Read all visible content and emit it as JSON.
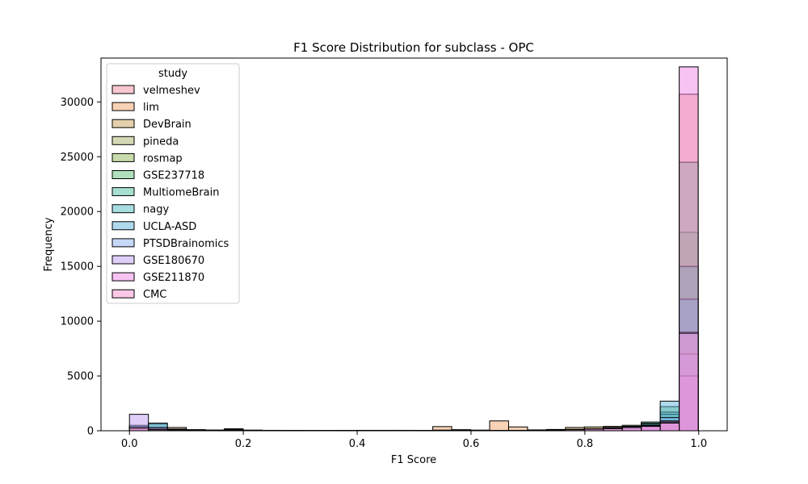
{
  "chart_data": {
    "type": "histogram",
    "title": "F1 Score Distribution for subclass - OPC",
    "xlabel": "F1 Score",
    "ylabel": "Frequency",
    "xlim": [
      -0.05,
      1.05
    ],
    "ylim": [
      0,
      34000
    ],
    "xticks": [
      0.0,
      0.2,
      0.4,
      0.6,
      0.8,
      1.0
    ],
    "xtick_labels": [
      "0.0",
      "0.2",
      "0.4",
      "0.6",
      "0.8",
      "1.0"
    ],
    "yticks": [
      0,
      5000,
      10000,
      15000,
      20000,
      25000,
      30000
    ],
    "ytick_labels": [
      "0",
      "5000",
      "10000",
      "15000",
      "20000",
      "25000",
      "30000"
    ],
    "bin_start": 0.0,
    "bin_width": 0.0333,
    "bin_count": 30,
    "legend": {
      "title": "study",
      "location": "upper left"
    },
    "grid": false,
    "series": [
      {
        "name": "velmeshev",
        "color": "#f48fa2",
        "values": [
          120,
          20,
          30,
          10,
          0,
          0,
          0,
          0,
          0,
          0,
          0,
          0,
          0,
          0,
          0,
          0,
          0,
          0,
          0,
          0,
          0,
          0,
          0,
          0,
          0,
          20,
          40,
          80,
          200,
          5800
        ]
      },
      {
        "name": "lim",
        "color": "#f2a56b",
        "values": [
          200,
          60,
          80,
          30,
          0,
          0,
          0,
          0,
          0,
          0,
          0,
          0,
          0,
          0,
          0,
          0,
          380,
          100,
          60,
          900,
          350,
          80,
          120,
          150,
          200,
          250,
          300,
          400,
          800,
          30700
        ]
      },
      {
        "name": "DevBrain",
        "color": "#c9a25a",
        "values": [
          300,
          150,
          300,
          100,
          50,
          120,
          60,
          40,
          20,
          10,
          20,
          30,
          40,
          40,
          40,
          30,
          60,
          40,
          30,
          30,
          40,
          60,
          80,
          300,
          350,
          400,
          400,
          500,
          600,
          14900
        ]
      },
      {
        "name": "pineda",
        "color": "#adb06a",
        "values": [
          100,
          50,
          60,
          30,
          20,
          20,
          10,
          0,
          0,
          0,
          0,
          0,
          0,
          0,
          0,
          0,
          20,
          20,
          20,
          20,
          20,
          30,
          40,
          60,
          80,
          100,
          200,
          300,
          500,
          8800
        ]
      },
      {
        "name": "rosmap",
        "color": "#8fb85a",
        "values": [
          300,
          100,
          120,
          60,
          30,
          30,
          20,
          10,
          10,
          10,
          10,
          10,
          10,
          10,
          10,
          10,
          30,
          30,
          30,
          30,
          30,
          40,
          60,
          100,
          150,
          200,
          300,
          400,
          700,
          18100
        ]
      },
      {
        "name": "GSE237718",
        "color": "#5fbf7a",
        "values": [
          200,
          80,
          60,
          40,
          20,
          20,
          20,
          10,
          10,
          10,
          10,
          10,
          10,
          10,
          10,
          10,
          20,
          20,
          20,
          20,
          20,
          30,
          40,
          80,
          150,
          300,
          500,
          700,
          2200,
          24500
        ]
      },
      {
        "name": "MultiomeBrain",
        "color": "#4dbfa0",
        "values": [
          400,
          250,
          100,
          50,
          30,
          30,
          20,
          10,
          10,
          10,
          10,
          10,
          10,
          10,
          10,
          10,
          20,
          20,
          20,
          20,
          30,
          40,
          60,
          100,
          150,
          250,
          400,
          800,
          1700,
          15000
        ]
      },
      {
        "name": "nagy",
        "color": "#4fbcbf",
        "values": [
          400,
          600,
          150,
          80,
          60,
          180,
          40,
          30,
          20,
          10,
          10,
          10,
          10,
          10,
          10,
          10,
          20,
          20,
          20,
          20,
          30,
          40,
          60,
          100,
          150,
          250,
          350,
          600,
          1500,
          12000
        ]
      },
      {
        "name": "UCLA-ASD",
        "color": "#5fb3dc",
        "values": [
          500,
          700,
          150,
          80,
          60,
          100,
          40,
          30,
          20,
          10,
          10,
          10,
          10,
          10,
          10,
          10,
          20,
          20,
          20,
          20,
          30,
          40,
          60,
          100,
          150,
          250,
          400,
          650,
          2700,
          9000
        ]
      },
      {
        "name": "PTSDBrainomics",
        "color": "#8db2f0",
        "values": [
          300,
          200,
          100,
          50,
          30,
          30,
          20,
          10,
          10,
          10,
          10,
          10,
          10,
          10,
          10,
          10,
          20,
          20,
          20,
          20,
          30,
          40,
          60,
          100,
          150,
          200,
          300,
          500,
          1200,
          7000
        ]
      },
      {
        "name": "GSE180670",
        "color": "#c0a0f2",
        "values": [
          1500,
          300,
          100,
          50,
          30,
          30,
          20,
          10,
          10,
          10,
          10,
          10,
          10,
          10,
          10,
          10,
          20,
          20,
          20,
          20,
          30,
          40,
          60,
          100,
          150,
          200,
          300,
          450,
          900,
          5000
        ]
      },
      {
        "name": "GSE211870",
        "color": "#f088e8",
        "values": [
          200,
          80,
          60,
          40,
          20,
          20,
          20,
          10,
          10,
          10,
          10,
          10,
          10,
          10,
          10,
          10,
          20,
          20,
          20,
          20,
          30,
          40,
          60,
          100,
          150,
          200,
          300,
          400,
          800,
          33200
        ]
      },
      {
        "name": "CMC",
        "color": "#f793cf",
        "values": [
          300,
          100,
          80,
          40,
          20,
          20,
          20,
          10,
          10,
          10,
          10,
          10,
          10,
          10,
          10,
          10,
          20,
          20,
          20,
          20,
          30,
          40,
          60,
          100,
          150,
          200,
          300,
          400,
          700,
          8900
        ]
      }
    ]
  }
}
